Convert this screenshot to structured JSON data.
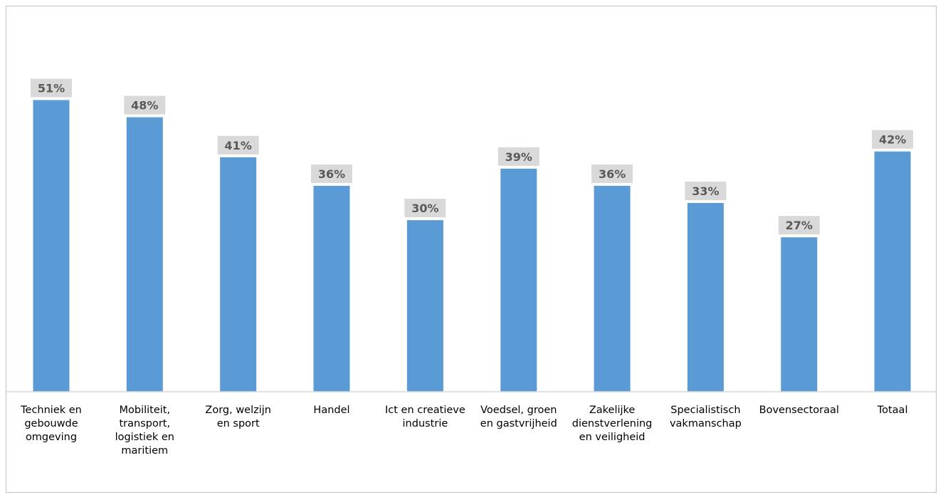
{
  "chart_data": {
    "type": "bar",
    "categories": [
      [
        "Techniek en",
        "gebouwde",
        "omgeving"
      ],
      [
        "Mobiliteit,",
        "transport,",
        "logistiek en",
        "maritiem"
      ],
      [
        "Zorg, welzijn",
        "en sport"
      ],
      [
        "Handel"
      ],
      [
        "Ict en creatieve",
        "industrie"
      ],
      [
        "Voedsel, groen",
        "en gastvrijheid"
      ],
      [
        "Zakelijke",
        "dienstverlening",
        "en veiligheid"
      ],
      [
        "Specialistisch",
        "vakmanschap"
      ],
      [
        "Bovensectoraal"
      ],
      [
        "Totaal"
      ]
    ],
    "values": [
      51,
      48,
      41,
      36,
      30,
      39,
      36,
      33,
      27,
      42
    ],
    "data_labels": [
      "51%",
      "48%",
      "41%",
      "36%",
      "30%",
      "39%",
      "36%",
      "33%",
      "27%",
      "42%"
    ],
    "ylim": [
      0,
      60
    ],
    "grid": false,
    "legend": "none",
    "title": "",
    "xlabel": "",
    "ylabel": "",
    "colors": {
      "bar": "#5b9bd5",
      "label_box": "#d9d9d9",
      "label_text": "#595959",
      "axis": "#d9d9d9",
      "border": "#bfbfbf"
    }
  }
}
